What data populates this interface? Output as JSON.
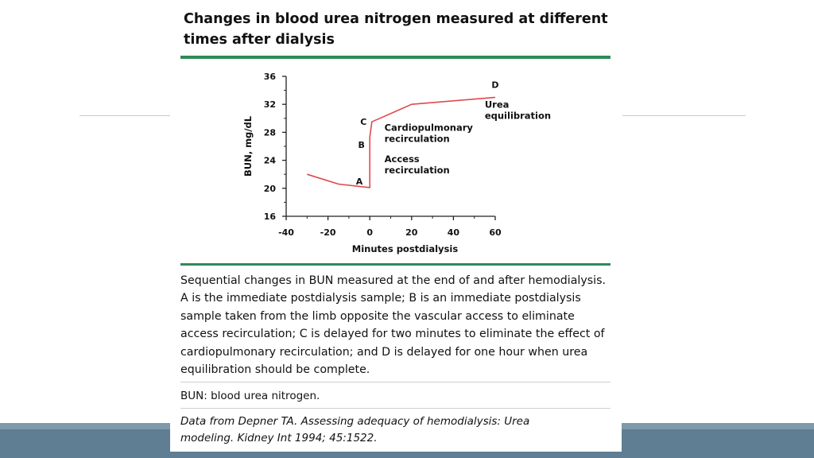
{
  "figure": {
    "title": "Changes in blood urea nitrogen measured at different times after dialysis",
    "caption": "Sequential changes in BUN measured at the end of and after hemodialysis. A is the immediate postdialysis sample; B is an immediate postdialysis sample taken from the limb opposite the vascular access to eliminate access recirculation; C is delayed for two minutes to eliminate the effect of cardiopulmonary recirculation; and D is delayed for one hour when urea equilibration should be complete.",
    "abbreviation": "BUN: blood urea nitrogen.",
    "source_line1": "Data from Depner TA. Assessing adequacy of hemodialysis: Urea",
    "source_line2": "modeling. Kidney Int 1994; 45:1522."
  },
  "chart_data": {
    "type": "line",
    "xlabel": "Minutes postdialysis",
    "ylabel": "BUN, mg/dL",
    "xlim": [
      -40,
      60
    ],
    "ylim": [
      16,
      36
    ],
    "xticks": [
      -40,
      -20,
      0,
      20,
      40,
      60
    ],
    "yticks": [
      16,
      20,
      24,
      28,
      32,
      36
    ],
    "grid": false,
    "series": [
      {
        "color": "#e0474c",
        "points": [
          {
            "x": -30,
            "y": 22.0
          },
          {
            "x": -15,
            "y": 20.6
          },
          {
            "x": 0,
            "y": 20.1
          },
          {
            "x": 0,
            "y": 23.8
          },
          {
            "x": 0,
            "y": 27.3
          },
          {
            "x": 1,
            "y": 29.5
          },
          {
            "x": 20,
            "y": 32.0
          },
          {
            "x": 60,
            "y": 33.0
          }
        ]
      }
    ],
    "point_labels": [
      {
        "text": "A",
        "x": -5,
        "y": 21.0
      },
      {
        "text": "B",
        "x": -4,
        "y": 26.2
      },
      {
        "text": "C",
        "x": -3,
        "y": 29.5
      },
      {
        "text": "D",
        "x": 60,
        "y": 34.8
      }
    ],
    "annotations": [
      {
        "lines": [
          "Cardiopulmonary",
          "recirculation"
        ],
        "x": 7,
        "y": 28.2
      },
      {
        "lines": [
          "Access",
          "recirculation"
        ],
        "x": 7,
        "y": 23.7
      },
      {
        "lines": [
          "Urea",
          "equilibration"
        ],
        "x": 55,
        "y": 31.5
      }
    ]
  }
}
